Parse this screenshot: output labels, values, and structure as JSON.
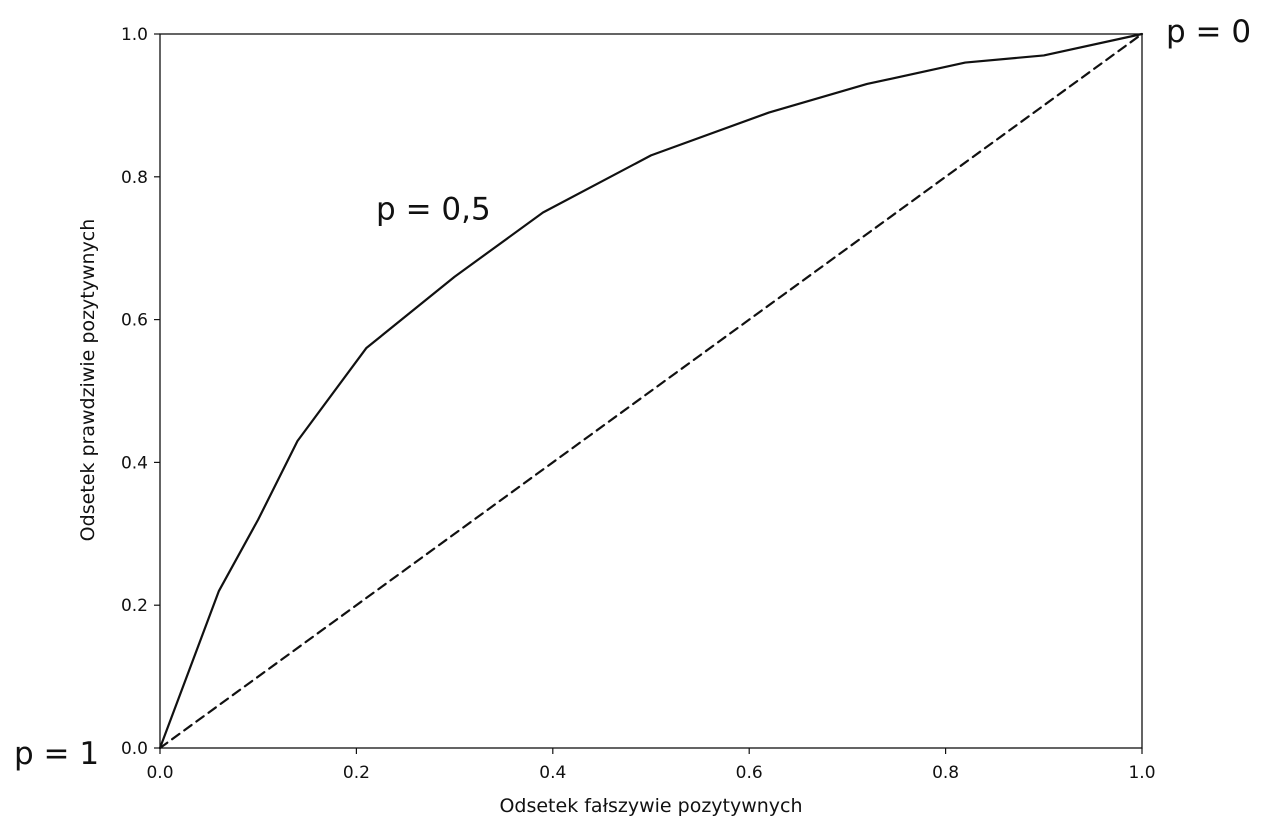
{
  "chart_data": {
    "type": "line",
    "xlabel": "Odsetek fałszywie pozytywnych",
    "ylabel": "Odsetek prawdziwie pozytywnych",
    "xlim": [
      0.0,
      1.0
    ],
    "ylim": [
      0.0,
      1.0
    ],
    "x_ticks": [
      "0.0",
      "0.2",
      "0.4",
      "0.6",
      "0.8",
      "1.0"
    ],
    "y_ticks": [
      "0.0",
      "0.2",
      "0.4",
      "0.6",
      "0.8",
      "1.0"
    ],
    "grid": false,
    "series": [
      {
        "style": "solid",
        "color": "#111111",
        "x": [
          0.0,
          0.06,
          0.1,
          0.14,
          0.21,
          0.3,
          0.39,
          0.5,
          0.62,
          0.72,
          0.82,
          0.9,
          1.0
        ],
        "y": [
          0.0,
          0.22,
          0.32,
          0.43,
          0.56,
          0.66,
          0.75,
          0.83,
          0.89,
          0.93,
          0.96,
          0.97,
          1.0
        ]
      },
      {
        "style": "dashed",
        "color": "#111111",
        "x": [
          0.0,
          1.0
        ],
        "y": [
          0.0,
          1.0
        ]
      }
    ],
    "annotations": [
      {
        "text": "p = 1",
        "x": 0.0,
        "y": 0.0
      },
      {
        "text": "p = 0,5",
        "x": 0.22,
        "y": 0.74
      },
      {
        "text": "p = 0",
        "x": 1.0,
        "y": 1.0
      }
    ]
  }
}
